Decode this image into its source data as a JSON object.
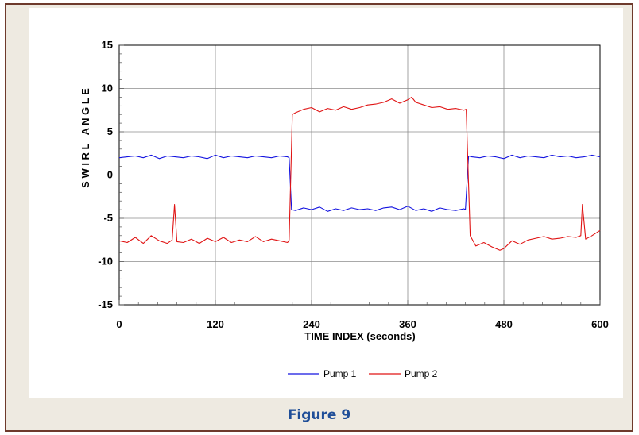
{
  "figure_caption": "Figure 9",
  "colors": {
    "pump1": "#1414e0",
    "pump2": "#e01414",
    "frame_border": "#6e3a2c",
    "frame_bg": "#eeeae1",
    "caption": "#1f4e98",
    "grid": "#8c8c8c"
  },
  "chart_data": {
    "type": "line",
    "title": "",
    "xlabel": "TIME INDEX (seconds)",
    "ylabel": "S W I R L   A N G L E",
    "xlim": [
      0,
      600
    ],
    "ylim": [
      -15,
      15
    ],
    "xticks": [
      0,
      120,
      240,
      360,
      480,
      600
    ],
    "yticks": [
      -15,
      -10,
      -5,
      0,
      5,
      10,
      15
    ],
    "grid": true,
    "legend_position": "bottom-center",
    "series": [
      {
        "name": "Pump 1",
        "color": "#1414e0",
        "points": [
          [
            0,
            2.0
          ],
          [
            10,
            2.1
          ],
          [
            20,
            2.2
          ],
          [
            30,
            2.0
          ],
          [
            40,
            2.3
          ],
          [
            50,
            1.9
          ],
          [
            60,
            2.2
          ],
          [
            70,
            2.1
          ],
          [
            80,
            2.0
          ],
          [
            90,
            2.2
          ],
          [
            100,
            2.1
          ],
          [
            110,
            1.9
          ],
          [
            120,
            2.3
          ],
          [
            130,
            2.0
          ],
          [
            140,
            2.2
          ],
          [
            150,
            2.1
          ],
          [
            160,
            2.0
          ],
          [
            170,
            2.2
          ],
          [
            180,
            2.1
          ],
          [
            190,
            2.0
          ],
          [
            200,
            2.2
          ],
          [
            210,
            2.1
          ],
          [
            212,
            2.0
          ],
          [
            215,
            -4.0
          ],
          [
            220,
            -4.1
          ],
          [
            230,
            -3.8
          ],
          [
            240,
            -4.0
          ],
          [
            250,
            -3.7
          ],
          [
            260,
            -4.2
          ],
          [
            270,
            -3.9
          ],
          [
            280,
            -4.1
          ],
          [
            290,
            -3.8
          ],
          [
            300,
            -4.0
          ],
          [
            310,
            -3.9
          ],
          [
            320,
            -4.1
          ],
          [
            330,
            -3.8
          ],
          [
            340,
            -3.7
          ],
          [
            350,
            -4.0
          ],
          [
            360,
            -3.6
          ],
          [
            370,
            -4.1
          ],
          [
            380,
            -3.9
          ],
          [
            390,
            -4.2
          ],
          [
            400,
            -3.8
          ],
          [
            410,
            -4.0
          ],
          [
            420,
            -4.1
          ],
          [
            430,
            -3.9
          ],
          [
            432,
            -4.0
          ],
          [
            436,
            2.2
          ],
          [
            440,
            2.1
          ],
          [
            450,
            2.0
          ],
          [
            460,
            2.2
          ],
          [
            470,
            2.1
          ],
          [
            480,
            1.9
          ],
          [
            490,
            2.3
          ],
          [
            500,
            2.0
          ],
          [
            510,
            2.2
          ],
          [
            520,
            2.1
          ],
          [
            530,
            2.0
          ],
          [
            540,
            2.3
          ],
          [
            550,
            2.1
          ],
          [
            560,
            2.2
          ],
          [
            570,
            2.0
          ],
          [
            580,
            2.1
          ],
          [
            590,
            2.3
          ],
          [
            600,
            2.1
          ]
        ]
      },
      {
        "name": "Pump 2",
        "color": "#e01414",
        "points": [
          [
            0,
            -7.6
          ],
          [
            10,
            -7.8
          ],
          [
            20,
            -7.2
          ],
          [
            30,
            -7.9
          ],
          [
            40,
            -7.0
          ],
          [
            50,
            -7.6
          ],
          [
            60,
            -7.9
          ],
          [
            66,
            -7.5
          ],
          [
            69,
            -3.4
          ],
          [
            72,
            -7.7
          ],
          [
            80,
            -7.8
          ],
          [
            90,
            -7.4
          ],
          [
            100,
            -7.9
          ],
          [
            110,
            -7.3
          ],
          [
            120,
            -7.7
          ],
          [
            130,
            -7.2
          ],
          [
            140,
            -7.8
          ],
          [
            150,
            -7.5
          ],
          [
            160,
            -7.7
          ],
          [
            170,
            -7.1
          ],
          [
            180,
            -7.7
          ],
          [
            190,
            -7.4
          ],
          [
            200,
            -7.6
          ],
          [
            210,
            -7.8
          ],
          [
            212,
            -7.5
          ],
          [
            216,
            7.0
          ],
          [
            220,
            7.2
          ],
          [
            230,
            7.6
          ],
          [
            240,
            7.8
          ],
          [
            250,
            7.3
          ],
          [
            260,
            7.7
          ],
          [
            270,
            7.5
          ],
          [
            280,
            7.9
          ],
          [
            290,
            7.6
          ],
          [
            300,
            7.8
          ],
          [
            310,
            8.1
          ],
          [
            320,
            8.2
          ],
          [
            330,
            8.4
          ],
          [
            340,
            8.8
          ],
          [
            350,
            8.3
          ],
          [
            360,
            8.7
          ],
          [
            365,
            9.0
          ],
          [
            370,
            8.4
          ],
          [
            380,
            8.1
          ],
          [
            390,
            7.8
          ],
          [
            400,
            7.9
          ],
          [
            410,
            7.6
          ],
          [
            420,
            7.7
          ],
          [
            430,
            7.5
          ],
          [
            433,
            7.6
          ],
          [
            438,
            -7.0
          ],
          [
            445,
            -8.2
          ],
          [
            455,
            -7.8
          ],
          [
            465,
            -8.3
          ],
          [
            475,
            -8.7
          ],
          [
            480,
            -8.5
          ],
          [
            490,
            -7.6
          ],
          [
            500,
            -8.0
          ],
          [
            510,
            -7.5
          ],
          [
            520,
            -7.3
          ],
          [
            530,
            -7.1
          ],
          [
            540,
            -7.4
          ],
          [
            550,
            -7.3
          ],
          [
            560,
            -7.1
          ],
          [
            570,
            -7.2
          ],
          [
            576,
            -7.0
          ],
          [
            578,
            -3.4
          ],
          [
            582,
            -7.4
          ],
          [
            590,
            -7.0
          ],
          [
            600,
            -6.4
          ]
        ]
      }
    ]
  },
  "legend": [
    {
      "label": "Pump 1"
    },
    {
      "label": "Pump 2"
    }
  ]
}
